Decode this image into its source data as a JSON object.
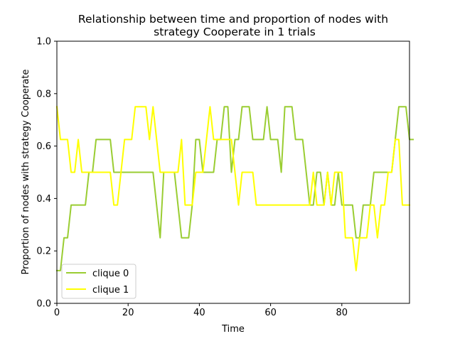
{
  "chart_data": {
    "type": "line",
    "title_line1": "Relationship between time and proportion of nodes with",
    "title_line2": "strategy Cooperate in 1 trials",
    "xlabel": "Time",
    "ylabel": "Proportion of nodes with strategy Cooperate",
    "xlim": [
      0,
      99
    ],
    "ylim": [
      0.0,
      1.0
    ],
    "xticks": [
      0,
      20,
      40,
      60,
      80
    ],
    "xtick_labels": [
      "0",
      "20",
      "40",
      "60",
      "80"
    ],
    "yticks": [
      0.0,
      0.2,
      0.4,
      0.6,
      0.8,
      1.0
    ],
    "ytick_labels": [
      "0.0",
      "0.2",
      "0.4",
      "0.6",
      "0.8",
      "1.0"
    ],
    "legend_position": "lower-left",
    "series": [
      {
        "name": "clique 0",
        "color": "#9acd32",
        "values": [
          0.125,
          0.125,
          0.25,
          0.25,
          0.375,
          0.375,
          0.375,
          0.375,
          0.375,
          0.5,
          0.5,
          0.625,
          0.625,
          0.625,
          0.625,
          0.625,
          0.5,
          0.5,
          0.5,
          0.5,
          0.5,
          0.5,
          0.5,
          0.5,
          0.5,
          0.5,
          0.5,
          0.5,
          0.375,
          0.25,
          0.5,
          0.5,
          0.5,
          0.5,
          0.375,
          0.25,
          0.25,
          0.25,
          0.375,
          0.625,
          0.625,
          0.5,
          0.5,
          0.5,
          0.5,
          0.625,
          0.625,
          0.75,
          0.75,
          0.5,
          0.625,
          0.625,
          0.75,
          0.75,
          0.75,
          0.625,
          0.625,
          0.625,
          0.625,
          0.75,
          0.625,
          0.625,
          0.625,
          0.5,
          0.75,
          0.75,
          0.75,
          0.625,
          0.625,
          0.625,
          0.5,
          0.375,
          0.375,
          0.5,
          0.5,
          0.375,
          0.5,
          0.375,
          0.375,
          0.5,
          0.375,
          0.375,
          0.375,
          0.375,
          0.25,
          0.25,
          0.375,
          0.375,
          0.375,
          0.5,
          0.5,
          0.5,
          0.5,
          0.5,
          0.5,
          0.625,
          0.75,
          0.75,
          0.75,
          0.625,
          0.625
        ]
      },
      {
        "name": "clique 1",
        "color": "#ffff00",
        "values": [
          0.75,
          0.625,
          0.625,
          0.625,
          0.5,
          0.5,
          0.625,
          0.5,
          0.5,
          0.5,
          0.5,
          0.5,
          0.5,
          0.5,
          0.5,
          0.5,
          0.375,
          0.375,
          0.5,
          0.625,
          0.625,
          0.625,
          0.75,
          0.75,
          0.75,
          0.75,
          0.625,
          0.75,
          0.625,
          0.5,
          0.5,
          0.5,
          0.5,
          0.5,
          0.5,
          0.625,
          0.375,
          0.375,
          0.375,
          0.5,
          0.5,
          0.5,
          0.625,
          0.75,
          0.625,
          0.625,
          0.625,
          0.625,
          0.625,
          0.625,
          0.5,
          0.375,
          0.5,
          0.5,
          0.5,
          0.5,
          0.375,
          0.375,
          0.375,
          0.375,
          0.375,
          0.375,
          0.375,
          0.375,
          0.375,
          0.375,
          0.375,
          0.375,
          0.375,
          0.375,
          0.375,
          0.375,
          0.5,
          0.375,
          0.375,
          0.375,
          0.5,
          0.375,
          0.5,
          0.5,
          0.5,
          0.25,
          0.25,
          0.25,
          0.125,
          0.25,
          0.25,
          0.25,
          0.375,
          0.375,
          0.25,
          0.375,
          0.375,
          0.5,
          0.5,
          0.625,
          0.625,
          0.375,
          0.375,
          0.375
        ]
      }
    ]
  }
}
